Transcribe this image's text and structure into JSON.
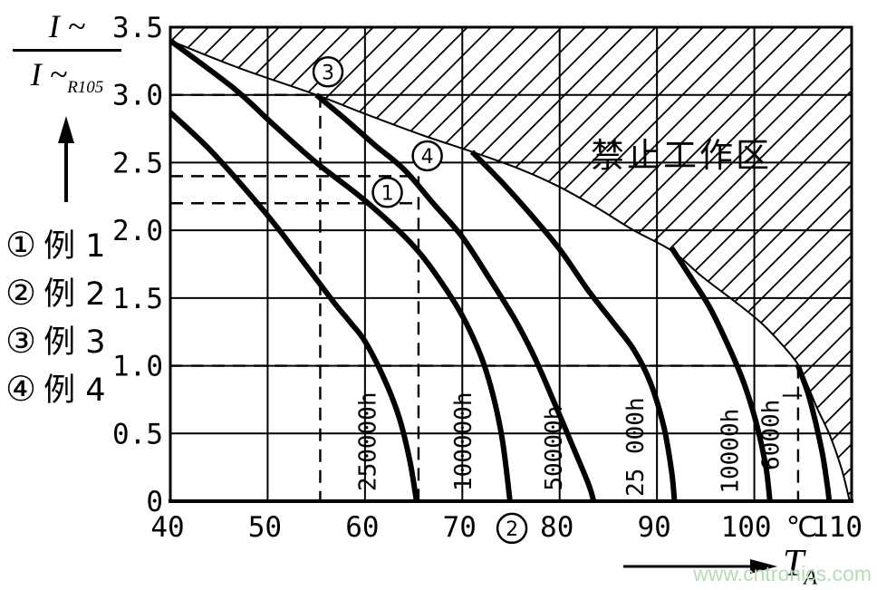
{
  "colors": {
    "ink": "#000000",
    "bg": "#ffffff",
    "watermark": "#b2dfb2"
  },
  "y_title": {
    "num_i": "I",
    "num_t": "~",
    "den_i": "I",
    "den_t": "~",
    "den_sub": "R105"
  },
  "x_label": {
    "i": "T",
    "sub": "A"
  },
  "legend": {
    "items": [
      {
        "symbol": "①",
        "label": "例 1"
      },
      {
        "symbol": "②",
        "label": "例 2"
      },
      {
        "symbol": "③",
        "label": "例 3"
      },
      {
        "symbol": "④",
        "label": "例 4"
      }
    ]
  },
  "watermark": {
    "text": "www.cntronics.com"
  },
  "chart_data": {
    "type": "line",
    "title": "",
    "xlabel": "T_A",
    "ylabel": "I~/I~R105",
    "x_unit": "℃",
    "x_unit_at": 104.9,
    "xlim": [
      40,
      110
    ],
    "ylim": [
      0,
      3.5
    ],
    "grid": true,
    "x_ticks": [
      "40",
      "50",
      "60",
      "70",
      "80",
      "90",
      "100",
      "110"
    ],
    "x_tick_values": [
      40,
      50,
      60,
      70,
      80,
      90,
      100,
      110
    ],
    "y_ticks": [
      "3.5",
      "3.0",
      "2.5",
      "2.0",
      "1.5",
      "1.0",
      "0.5",
      "0"
    ],
    "y_tick_values": [
      3.5,
      3.0,
      2.5,
      2.0,
      1.5,
      1.0,
      0.5,
      0
    ],
    "series": [
      {
        "name": "250000h",
        "label_at": [
          61.1,
          0.44
        ],
        "points": [
          [
            40,
            2.87
          ],
          [
            44,
            2.6
          ],
          [
            48,
            2.28
          ],
          [
            51,
            2.02
          ],
          [
            53,
            1.83
          ],
          [
            55,
            1.64
          ],
          [
            57,
            1.45
          ],
          [
            58.5,
            1.32
          ],
          [
            60,
            1.18
          ],
          [
            62,
            0.9
          ],
          [
            63.5,
            0.62
          ],
          [
            64.6,
            0.3
          ],
          [
            65.3,
            0
          ]
        ]
      },
      {
        "name": "100000h",
        "label_at": [
          70.9,
          0.44
        ],
        "points": [
          [
            40,
            3.4
          ],
          [
            46.5,
            3.05
          ],
          [
            50.6,
            2.78
          ],
          [
            55,
            2.5
          ],
          [
            60,
            2.22
          ],
          [
            64.8,
            1.9
          ],
          [
            68,
            1.6
          ],
          [
            70.5,
            1.3
          ],
          [
            72.5,
            0.95
          ],
          [
            74,
            0.5
          ],
          [
            74.9,
            0
          ]
        ]
      },
      {
        "name": "50000h",
        "label_at": [
          80.2,
          0.39
        ],
        "points": [
          [
            55,
            3.0
          ],
          [
            58,
            2.82
          ],
          [
            61,
            2.63
          ],
          [
            64,
            2.45
          ],
          [
            67,
            2.2
          ],
          [
            70,
            1.95
          ],
          [
            73,
            1.62
          ],
          [
            75.5,
            1.33
          ],
          [
            77.5,
            1.05
          ],
          [
            79.5,
            0.72
          ],
          [
            81.5,
            0.38
          ],
          [
            83,
            0.12
          ],
          [
            83.5,
            0
          ]
        ]
      },
      {
        "name": "25 000h",
        "label_at": [
          88.6,
          0.4
        ],
        "points": [
          [
            71,
            2.58
          ],
          [
            74,
            2.36
          ],
          [
            77,
            2.12
          ],
          [
            80,
            1.86
          ],
          [
            83,
            1.55
          ],
          [
            85.5,
            1.32
          ],
          [
            87.6,
            1.12
          ],
          [
            89.3,
            0.88
          ],
          [
            90.7,
            0.55
          ],
          [
            91.5,
            0.22
          ],
          [
            91.8,
            0
          ]
        ]
      },
      {
        "name": "10000h",
        "label_at": [
          98.3,
          0.37
        ],
        "points": [
          [
            91.5,
            1.87
          ],
          [
            93.5,
            1.65
          ],
          [
            95.5,
            1.42
          ],
          [
            97.5,
            1.12
          ],
          [
            99,
            0.86
          ],
          [
            100.3,
            0.55
          ],
          [
            101.2,
            0.25
          ],
          [
            101.6,
            0
          ]
        ]
      },
      {
        "name": "6000h",
        "label_at": [
          102.5,
          0.49
        ],
        "points": [
          [
            104.5,
            1.0
          ],
          [
            105.5,
            0.8
          ],
          [
            106.3,
            0.58
          ],
          [
            107,
            0.35
          ],
          [
            107.5,
            0.12
          ],
          [
            107.7,
            0
          ]
        ]
      }
    ],
    "envelope": {
      "name": "forbidden-region-boundary",
      "points": [
        [
          40,
          3.4
        ],
        [
          47,
          3.2
        ],
        [
          55,
          3.0
        ],
        [
          60,
          2.86
        ],
        [
          66,
          2.7
        ],
        [
          71,
          2.58
        ],
        [
          76,
          2.45
        ],
        [
          80,
          2.32
        ],
        [
          84,
          2.16
        ],
        [
          87.6,
          2.0
        ],
        [
          91.5,
          1.85
        ],
        [
          94.6,
          1.66
        ],
        [
          97.9,
          1.48
        ],
        [
          100.5,
          1.33
        ],
        [
          102.3,
          1.2
        ],
        [
          104.4,
          1.02
        ],
        [
          105.5,
          0.85
        ],
        [
          106.5,
          0.68
        ],
        [
          107.8,
          0.48
        ],
        [
          109,
          0.23
        ],
        [
          109.8,
          0
        ]
      ]
    },
    "forbidden_region_label": "禁止工作区",
    "forbidden_label_at": [
      92.5,
      2.47
    ],
    "guides": [
      {
        "orient": "h",
        "value": 3.0,
        "from": 40,
        "to": 55.4
      },
      {
        "orient": "v",
        "at": 55.4,
        "from": 3.0,
        "to": 0
      },
      {
        "orient": "h",
        "value": 2.4,
        "from": 40,
        "to": 65.5
      },
      {
        "orient": "h",
        "value": 2.2,
        "from": 40,
        "to": 65.5
      },
      {
        "orient": "v",
        "at": 65.5,
        "from": 2.4,
        "to": 0
      },
      {
        "orient": "h",
        "value": 1.0,
        "from": 40,
        "to": 104.5
      },
      {
        "orient": "v",
        "at": 104.5,
        "from": 1.0,
        "to": 0
      }
    ],
    "leader": {
      "from": [
        102.9,
        0.78
      ],
      "to": [
        104.9,
        0.78
      ]
    },
    "point_labels": [
      {
        "symbol": "1",
        "T": 62.3,
        "v": 2.28
      },
      {
        "symbol": "2",
        "T": 75.1,
        "v": -0.2
      },
      {
        "symbol": "3",
        "T": 56.2,
        "v": 3.17
      },
      {
        "symbol": "4",
        "T": 66.4,
        "v": 2.55
      }
    ]
  }
}
